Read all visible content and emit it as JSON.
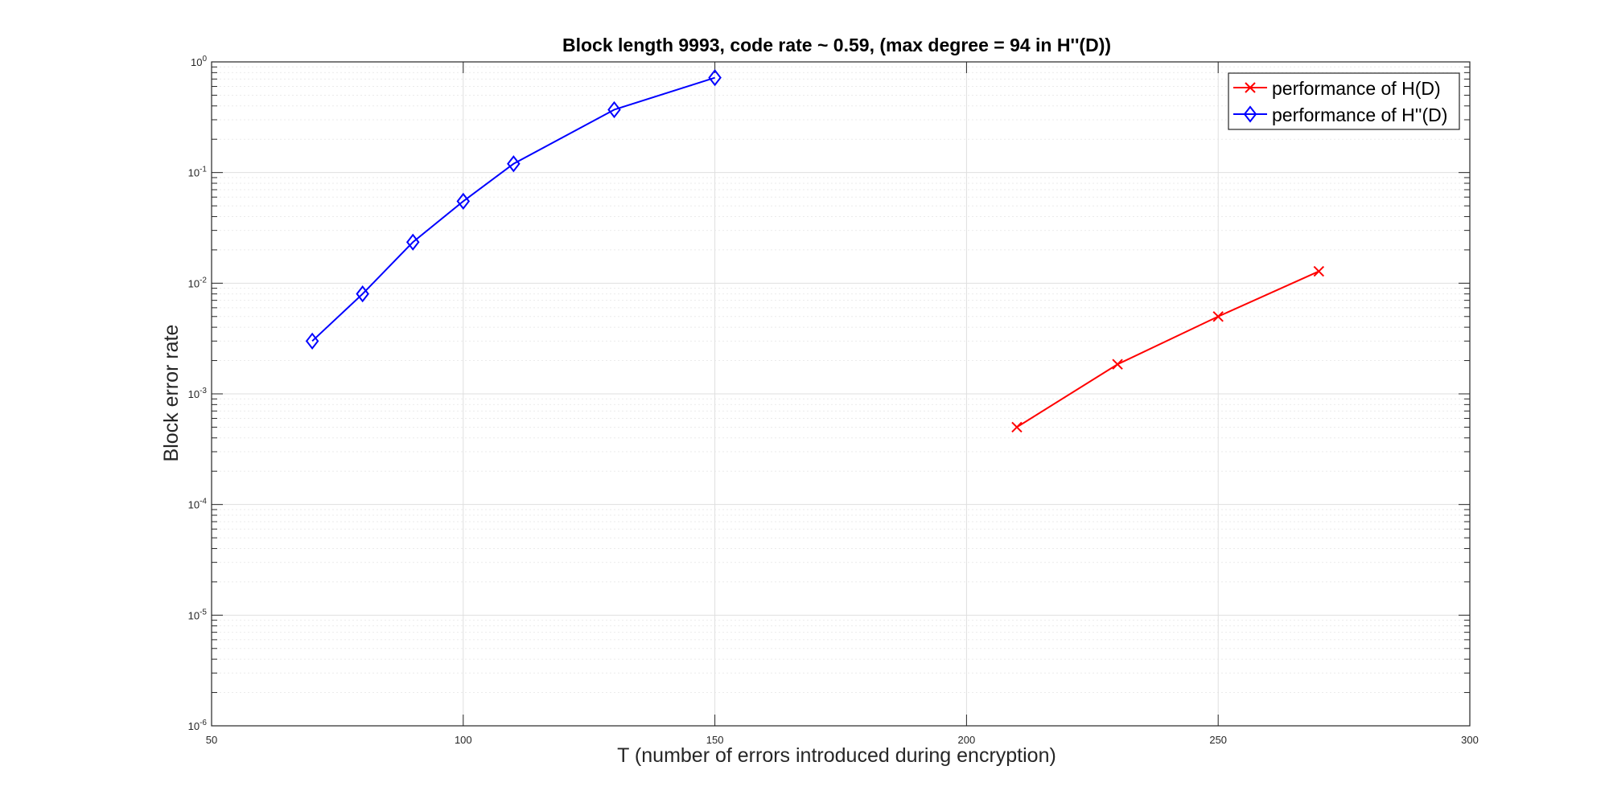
{
  "chart_data": {
    "type": "line",
    "title": "Block length 9993, code rate ~ 0.59, (max degree = 94 in H''(D))",
    "xlabel": "T (number of errors introduced during encryption)",
    "ylabel": "Block error rate",
    "xlim": [
      50,
      300
    ],
    "ylim": [
      1e-06,
      1
    ],
    "yscale": "log",
    "grid": true,
    "minor_grid": true,
    "legend_position": "top-right",
    "x_ticks": [
      50,
      100,
      150,
      200,
      250,
      300
    ],
    "x_tick_labels": [
      "50",
      "100",
      "150",
      "200",
      "250",
      "300"
    ],
    "y_tick_exponents": [
      0,
      -1,
      -2,
      -3,
      -4,
      -5,
      -6
    ],
    "y_tick_base": "10",
    "series": [
      {
        "name": "performance of H(D)",
        "color": "#ff0000",
        "marker": "x",
        "x": [
          210,
          230,
          250,
          270
        ],
        "y": [
          0.0005,
          0.00185,
          0.005,
          0.0128
        ]
      },
      {
        "name": "performance of H''(D)",
        "color": "#0000ff",
        "marker": "diamond",
        "x": [
          70,
          80,
          90,
          100,
          110,
          130,
          150
        ],
        "y": [
          0.003,
          0.008,
          0.0235,
          0.055,
          0.12,
          0.37,
          0.72
        ]
      }
    ]
  }
}
